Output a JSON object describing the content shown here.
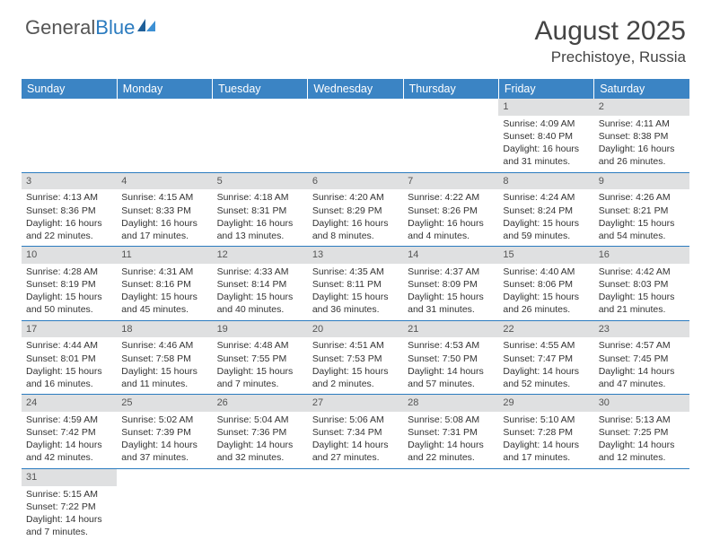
{
  "brand": {
    "part1": "General",
    "part2": "Blue"
  },
  "title": "August 2025",
  "location": "Prechistoye, Russia",
  "colors": {
    "header_bg": "#3b84c4",
    "header_text": "#ffffff",
    "daynum_bg": "#dfe0e1",
    "rule": "#2b7bbf",
    "logo_blue": "#2b7bbf",
    "sail_dark": "#1f5f99",
    "sail_light": "#3d90d4"
  },
  "weekdays": [
    "Sunday",
    "Monday",
    "Tuesday",
    "Wednesday",
    "Thursday",
    "Friday",
    "Saturday"
  ],
  "weeks": [
    [
      null,
      null,
      null,
      null,
      null,
      {
        "n": "1",
        "sr": "4:09 AM",
        "ss": "8:40 PM",
        "dl": "16 hours and 31 minutes."
      },
      {
        "n": "2",
        "sr": "4:11 AM",
        "ss": "8:38 PM",
        "dl": "16 hours and 26 minutes."
      }
    ],
    [
      {
        "n": "3",
        "sr": "4:13 AM",
        "ss": "8:36 PM",
        "dl": "16 hours and 22 minutes."
      },
      {
        "n": "4",
        "sr": "4:15 AM",
        "ss": "8:33 PM",
        "dl": "16 hours and 17 minutes."
      },
      {
        "n": "5",
        "sr": "4:18 AM",
        "ss": "8:31 PM",
        "dl": "16 hours and 13 minutes."
      },
      {
        "n": "6",
        "sr": "4:20 AM",
        "ss": "8:29 PM",
        "dl": "16 hours and 8 minutes."
      },
      {
        "n": "7",
        "sr": "4:22 AM",
        "ss": "8:26 PM",
        "dl": "16 hours and 4 minutes."
      },
      {
        "n": "8",
        "sr": "4:24 AM",
        "ss": "8:24 PM",
        "dl": "15 hours and 59 minutes."
      },
      {
        "n": "9",
        "sr": "4:26 AM",
        "ss": "8:21 PM",
        "dl": "15 hours and 54 minutes."
      }
    ],
    [
      {
        "n": "10",
        "sr": "4:28 AM",
        "ss": "8:19 PM",
        "dl": "15 hours and 50 minutes."
      },
      {
        "n": "11",
        "sr": "4:31 AM",
        "ss": "8:16 PM",
        "dl": "15 hours and 45 minutes."
      },
      {
        "n": "12",
        "sr": "4:33 AM",
        "ss": "8:14 PM",
        "dl": "15 hours and 40 minutes."
      },
      {
        "n": "13",
        "sr": "4:35 AM",
        "ss": "8:11 PM",
        "dl": "15 hours and 36 minutes."
      },
      {
        "n": "14",
        "sr": "4:37 AM",
        "ss": "8:09 PM",
        "dl": "15 hours and 31 minutes."
      },
      {
        "n": "15",
        "sr": "4:40 AM",
        "ss": "8:06 PM",
        "dl": "15 hours and 26 minutes."
      },
      {
        "n": "16",
        "sr": "4:42 AM",
        "ss": "8:03 PM",
        "dl": "15 hours and 21 minutes."
      }
    ],
    [
      {
        "n": "17",
        "sr": "4:44 AM",
        "ss": "8:01 PM",
        "dl": "15 hours and 16 minutes."
      },
      {
        "n": "18",
        "sr": "4:46 AM",
        "ss": "7:58 PM",
        "dl": "15 hours and 11 minutes."
      },
      {
        "n": "19",
        "sr": "4:48 AM",
        "ss": "7:55 PM",
        "dl": "15 hours and 7 minutes."
      },
      {
        "n": "20",
        "sr": "4:51 AM",
        "ss": "7:53 PM",
        "dl": "15 hours and 2 minutes."
      },
      {
        "n": "21",
        "sr": "4:53 AM",
        "ss": "7:50 PM",
        "dl": "14 hours and 57 minutes."
      },
      {
        "n": "22",
        "sr": "4:55 AM",
        "ss": "7:47 PM",
        "dl": "14 hours and 52 minutes."
      },
      {
        "n": "23",
        "sr": "4:57 AM",
        "ss": "7:45 PM",
        "dl": "14 hours and 47 minutes."
      }
    ],
    [
      {
        "n": "24",
        "sr": "4:59 AM",
        "ss": "7:42 PM",
        "dl": "14 hours and 42 minutes."
      },
      {
        "n": "25",
        "sr": "5:02 AM",
        "ss": "7:39 PM",
        "dl": "14 hours and 37 minutes."
      },
      {
        "n": "26",
        "sr": "5:04 AM",
        "ss": "7:36 PM",
        "dl": "14 hours and 32 minutes."
      },
      {
        "n": "27",
        "sr": "5:06 AM",
        "ss": "7:34 PM",
        "dl": "14 hours and 27 minutes."
      },
      {
        "n": "28",
        "sr": "5:08 AM",
        "ss": "7:31 PM",
        "dl": "14 hours and 22 minutes."
      },
      {
        "n": "29",
        "sr": "5:10 AM",
        "ss": "7:28 PM",
        "dl": "14 hours and 17 minutes."
      },
      {
        "n": "30",
        "sr": "5:13 AM",
        "ss": "7:25 PM",
        "dl": "14 hours and 12 minutes."
      }
    ],
    [
      {
        "n": "31",
        "sr": "5:15 AM",
        "ss": "7:22 PM",
        "dl": "14 hours and 7 minutes."
      },
      null,
      null,
      null,
      null,
      null,
      null
    ]
  ],
  "labels": {
    "sunrise": "Sunrise: ",
    "sunset": "Sunset: ",
    "daylight": "Daylight: "
  }
}
